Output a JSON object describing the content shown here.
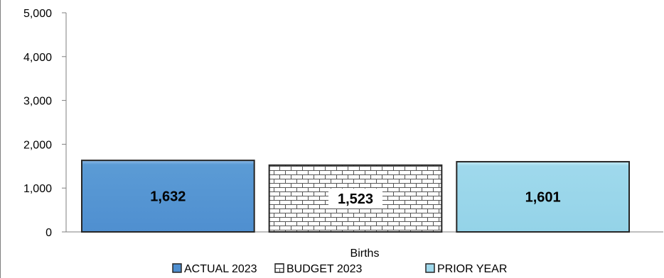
{
  "chart_data": {
    "type": "bar",
    "categories": [
      "Births"
    ],
    "series": [
      {
        "name": "ACTUAL 2023",
        "values": [
          1632
        ],
        "value_labels": [
          "1,632"
        ],
        "color": "#5b9bd5",
        "pattern": "solid"
      },
      {
        "name": "BUDGET 2023",
        "values": [
          1523
        ],
        "value_labels": [
          "1,523"
        ],
        "color": "#ffffff",
        "pattern": "brick"
      },
      {
        "name": "PRIOR YEAR",
        "values": [
          1601
        ],
        "value_labels": [
          "1,601"
        ],
        "color": "#9fd9ec",
        "pattern": "solid"
      }
    ],
    "ylim": [
      0,
      5000
    ],
    "yticks": [
      0,
      1000,
      2000,
      3000,
      4000,
      5000
    ],
    "ytick_labels": [
      "0",
      "1,000",
      "2,000",
      "3,000",
      "4,000",
      "5,000"
    ],
    "grid": false,
    "legend_position": "bottom"
  }
}
